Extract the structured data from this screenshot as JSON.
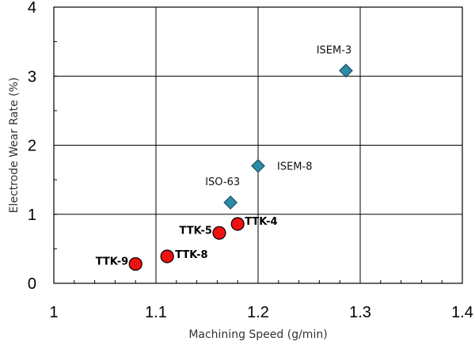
{
  "chart_data": {
    "type": "scatter",
    "xlabel": "Machining Speed (g/min)",
    "ylabel": "Electrode Wear Rate (%)",
    "xlim": [
      1,
      1.4
    ],
    "ylim": [
      0,
      4
    ],
    "x_ticks": [
      "1",
      "1.1",
      "1.2",
      "1.3",
      "1.4"
    ],
    "y_ticks": [
      "0",
      "1",
      "2",
      "3",
      "4"
    ],
    "grid": true,
    "series": [
      {
        "marker": "diamond",
        "color": "#2E8BA8",
        "points": [
          {
            "label": "ISEM-3",
            "x": 1.286,
            "y": 3.08
          },
          {
            "label": "ISEM-8",
            "x": 1.2,
            "y": 1.7
          },
          {
            "label": "ISO-63",
            "x": 1.173,
            "y": 1.17
          }
        ]
      },
      {
        "marker": "circle",
        "color": "#EE1111",
        "points": [
          {
            "label": "TTK-4",
            "x": 1.18,
            "y": 0.86
          },
          {
            "label": "TTK-5",
            "x": 1.162,
            "y": 0.73
          },
          {
            "label": "TTK-8",
            "x": 1.111,
            "y": 0.39
          },
          {
            "label": "TTK-9",
            "x": 1.08,
            "y": 0.28
          }
        ]
      }
    ]
  }
}
